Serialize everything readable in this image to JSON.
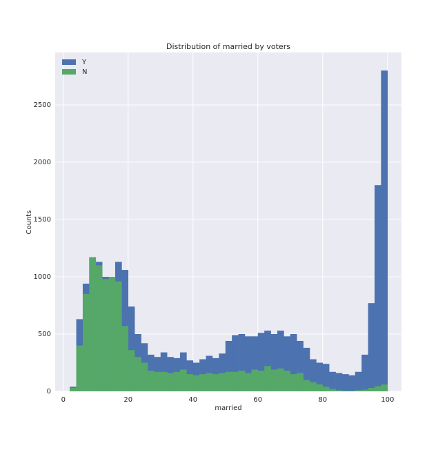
{
  "chart_data": {
    "type": "histogram",
    "title": "Distribution of married by voters",
    "x_label": "married",
    "y_label": "Counts",
    "bins": [
      2,
      4,
      6,
      8,
      10,
      12,
      14,
      16,
      18,
      20,
      22,
      24,
      26,
      28,
      30,
      32,
      34,
      36,
      38,
      40,
      42,
      44,
      46,
      48,
      50,
      52,
      54,
      56,
      58,
      60,
      62,
      64,
      66,
      68,
      70,
      72,
      74,
      76,
      78,
      80,
      82,
      84,
      86,
      88,
      90,
      92,
      94,
      96,
      98,
      100
    ],
    "series": [
      {
        "name": "Y",
        "color": "#4C72B0",
        "values": [
          40,
          630,
          940,
          1170,
          1130,
          1000,
          1000,
          1130,
          1060,
          740,
          500,
          420,
          320,
          300,
          340,
          300,
          290,
          340,
          270,
          250,
          280,
          310,
          290,
          330,
          440,
          490,
          500,
          480,
          480,
          510,
          530,
          500,
          530,
          480,
          500,
          440,
          380,
          280,
          250,
          240,
          170,
          160,
          150,
          140,
          170,
          320,
          770,
          1800,
          2800
        ]
      },
      {
        "name": "N",
        "color": "#55A868",
        "values": [
          30,
          400,
          850,
          1170,
          1100,
          980,
          1000,
          960,
          570,
          360,
          300,
          250,
          180,
          170,
          170,
          160,
          170,
          190,
          150,
          140,
          150,
          160,
          150,
          160,
          170,
          170,
          180,
          160,
          190,
          180,
          220,
          190,
          200,
          180,
          150,
          160,
          100,
          80,
          60,
          40,
          20,
          10,
          5,
          5,
          10,
          15,
          30,
          45,
          60
        ]
      }
    ],
    "xlim": [
      -2.5,
      104.3
    ],
    "ylim": [
      0,
      2958
    ],
    "xticks": [
      0,
      20,
      40,
      60,
      80,
      100
    ],
    "yticks": [
      0,
      500,
      1000,
      1500,
      2000,
      2500
    ],
    "grid": true,
    "legend": "upper left"
  }
}
